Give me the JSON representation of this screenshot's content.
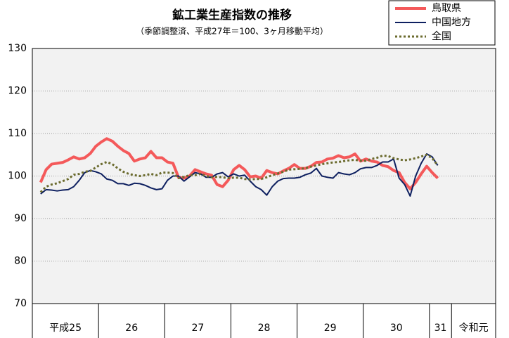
{
  "chart_data": {
    "type": "line",
    "title": "鉱工業生産指数の推移",
    "subtitle": "（季節調整済、平成27年＝100、3ヶ月移動平均）",
    "categories": [
      null,
      null,
      null,
      null,
      null,
      null,
      null,
      null,
      null,
      null,
      null,
      null,
      null,
      null,
      null,
      null,
      null,
      null,
      null,
      null,
      null,
      null,
      null,
      null,
      null,
      null,
      null,
      null,
      null,
      null,
      null,
      null,
      null,
      null,
      null,
      null,
      null,
      null,
      null,
      null,
      null,
      null,
      null,
      null,
      null,
      null,
      null,
      null,
      null,
      null,
      null,
      null,
      null,
      null,
      null,
      null,
      null,
      null,
      null,
      null,
      null,
      null,
      null,
      null,
      null,
      null,
      null,
      null,
      null,
      null,
      null,
      null,
      null,
      null,
      null,
      null,
      null,
      null,
      null,
      null,
      null,
      null,
      null,
      null
    ],
    "groups": [
      {
        "label": "平成25",
        "count": 12
      },
      {
        "label": "26",
        "count": 12
      },
      {
        "label": "27",
        "count": 12
      },
      {
        "label": "28",
        "count": 12
      },
      {
        "label": "29",
        "count": 12
      },
      {
        "label": "30",
        "count": 12
      },
      {
        "label": "31",
        "count": 4
      },
      {
        "label": "令和元",
        "count": 8
      }
    ],
    "series": [
      {
        "name": "鳥取県",
        "color": "#f4595a",
        "width": 4,
        "dash": null,
        "values": [
          null,
          98.5,
          101.5,
          102.8,
          103,
          103.2,
          103.8,
          104.5,
          104,
          104.3,
          105.3,
          107,
          108,
          108.8,
          108.2,
          107,
          106,
          105.3,
          103.5,
          104,
          104.3,
          105.8,
          104.3,
          104.3,
          103.3,
          103,
          99.7,
          99.5,
          100,
          101.5,
          101,
          100.5,
          100.2,
          98,
          97.5,
          99,
          101.5,
          102.5,
          101.5,
          99.8,
          100,
          99.5,
          101.3,
          100.8,
          100.5,
          101.2,
          101.8,
          102.7,
          101.8,
          101.8,
          102.3,
          103.2,
          103.3,
          104,
          104.2,
          104.8,
          104.3,
          104.5,
          105.2,
          103.5,
          104,
          103.5,
          103.3,
          102.5,
          102.2,
          101.3,
          100.8,
          98.5,
          97,
          98.5,
          100.5,
          102.3,
          100.8,
          99.5,
          null,
          null,
          null,
          null,
          null,
          null,
          null,
          null,
          null,
          null
        ]
      },
      {
        "name": "中国地方",
        "color": "#0e2060",
        "width": 2,
        "dash": null,
        "values": [
          null,
          95.8,
          96.8,
          96.7,
          96.5,
          96.7,
          96.8,
          97.5,
          99,
          100.8,
          101.3,
          101,
          100.5,
          99.3,
          99,
          98.2,
          98.2,
          97.8,
          98.3,
          98.2,
          97.8,
          97.2,
          96.8,
          97,
          99,
          100,
          100,
          98.8,
          99.8,
          100.8,
          100.5,
          99.7,
          99.7,
          100.5,
          100.8,
          99.8,
          100.5,
          100,
          100.2,
          98.8,
          97.5,
          96.8,
          95.5,
          97.5,
          98.8,
          99.4,
          99.5,
          99.5,
          99.7,
          100.3,
          100.7,
          101.8,
          100,
          99.7,
          99.5,
          100.8,
          100.5,
          100.3,
          100.8,
          101.7,
          102,
          102,
          102.5,
          103.3,
          103.3,
          104,
          99.5,
          98,
          95.3,
          100,
          103,
          105.2,
          104.5,
          102.5,
          null,
          null,
          null,
          null,
          null,
          null,
          null,
          null,
          null,
          null
        ]
      },
      {
        "name": "全国",
        "color": "#6b6b2e",
        "width": 3,
        "dash": "3 3",
        "values": [
          null,
          96.2,
          97.5,
          98,
          98.3,
          98.8,
          99.3,
          100.3,
          100.5,
          101,
          101.2,
          102,
          102.8,
          103.3,
          102.8,
          101.8,
          101,
          100.5,
          100.2,
          100,
          100.2,
          100.5,
          100.2,
          100.8,
          100.8,
          100.7,
          99.5,
          99.8,
          100.2,
          100.2,
          100.5,
          100,
          99.7,
          99.8,
          99.7,
          99.5,
          99.6,
          99.6,
          99.3,
          99.2,
          99.3,
          99.3,
          99.7,
          100.2,
          100.6,
          101,
          101.5,
          101.6,
          101.7,
          101.8,
          102.2,
          102.5,
          102.8,
          103,
          103.2,
          103.3,
          103.5,
          103.7,
          103.8,
          103.6,
          103.6,
          104,
          104.3,
          104.8,
          104.7,
          104.2,
          103.9,
          103.7,
          103.9,
          104.2,
          104.6,
          105,
          104.2,
          102.5,
          null,
          null,
          null,
          null,
          null,
          null,
          null,
          null,
          null,
          null
        ]
      }
    ],
    "ylim": [
      70,
      130
    ],
    "yticks": [
      70,
      80,
      90,
      100,
      110,
      120,
      130
    ],
    "grid": true,
    "legend": "top-right"
  }
}
